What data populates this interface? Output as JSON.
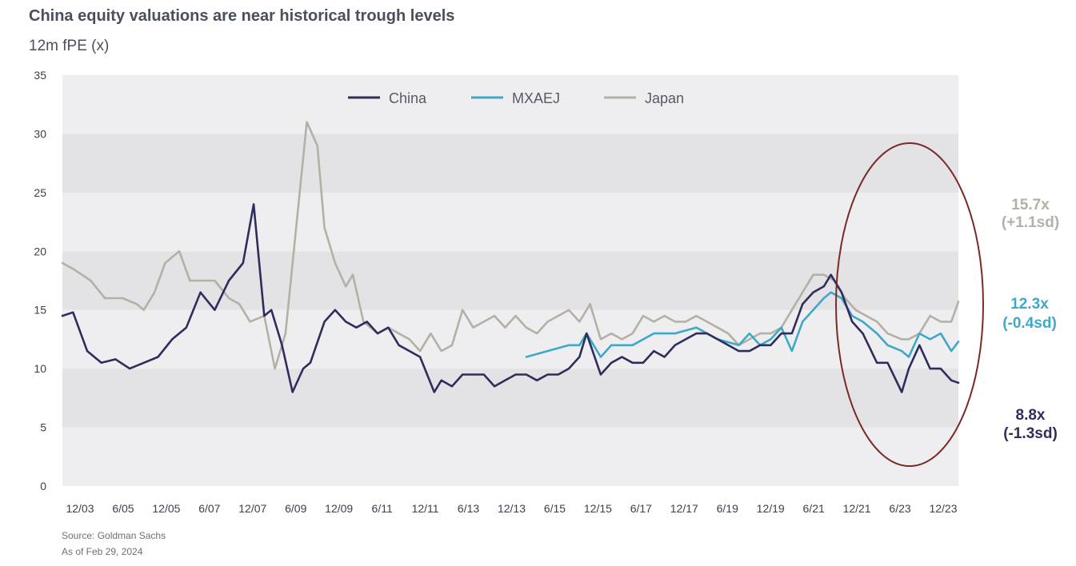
{
  "chart_data": {
    "type": "line",
    "title": "China equity valuations are near historical trough levels",
    "subtitle": "12m fPE (x)",
    "ylim": [
      0,
      35
    ],
    "y_ticks": [
      "0",
      "5",
      "10",
      "15",
      "20",
      "25",
      "30",
      "35"
    ],
    "x_tick_labels": [
      "12/03",
      "6/05",
      "12/05",
      "6/07",
      "12/07",
      "6/09",
      "12/09",
      "6/11",
      "12/11",
      "6/13",
      "12/13",
      "6/15",
      "12/15",
      "6/17",
      "12/17",
      "6/19",
      "12/19",
      "6/21",
      "12/21",
      "6/23",
      "12/23"
    ],
    "x_range": [
      "2003-01",
      "2024-02"
    ],
    "grid": "alternating horizontal bands",
    "legend": "top-center",
    "colors": {
      "China": "#2e2d5c",
      "MXAEJ": "#3ea8c8",
      "Japan": "#b5b0a6",
      "annotation": "#7a2a26"
    },
    "series": [
      {
        "name": "China",
        "x": [
          "2003-01",
          "2003-04",
          "2003-08",
          "2003-12",
          "2004-04",
          "2004-08",
          "2004-12",
          "2005-04",
          "2005-08",
          "2005-12",
          "2006-04",
          "2006-08",
          "2006-12",
          "2007-04",
          "2007-07",
          "2007-10",
          "2007-12",
          "2008-03",
          "2008-06",
          "2008-09",
          "2008-11",
          "2009-03",
          "2009-06",
          "2009-09",
          "2009-12",
          "2010-03",
          "2010-06",
          "2010-09",
          "2010-12",
          "2011-03",
          "2011-06",
          "2011-10",
          "2011-12",
          "2012-03",
          "2012-06",
          "2012-09",
          "2012-12",
          "2013-03",
          "2013-06",
          "2013-09",
          "2013-12",
          "2014-03",
          "2014-06",
          "2014-09",
          "2014-12",
          "2015-03",
          "2015-05",
          "2015-09",
          "2015-12",
          "2016-03",
          "2016-06",
          "2016-09",
          "2016-12",
          "2017-03",
          "2017-06",
          "2017-09",
          "2017-12",
          "2018-03",
          "2018-06",
          "2018-09",
          "2018-12",
          "2019-03",
          "2019-06",
          "2019-09",
          "2019-12",
          "2020-03",
          "2020-06",
          "2020-09",
          "2020-12",
          "2021-02",
          "2021-05",
          "2021-08",
          "2021-11",
          "2022-03",
          "2022-06",
          "2022-10",
          "2022-12",
          "2023-03",
          "2023-06",
          "2023-09",
          "2023-12",
          "2024-02"
        ],
        "values": [
          14.5,
          14.8,
          11.5,
          10.5,
          10.8,
          10.0,
          10.5,
          11.0,
          12.5,
          13.5,
          16.5,
          15.0,
          17.5,
          19.0,
          24.0,
          14.5,
          15.0,
          12.0,
          8.0,
          10.0,
          10.5,
          14.0,
          15.0,
          14.0,
          13.5,
          14.0,
          13.0,
          13.5,
          12.0,
          11.5,
          11.0,
          8.0,
          9.0,
          8.5,
          9.5,
          9.5,
          9.5,
          8.5,
          9.0,
          9.5,
          9.5,
          9.0,
          9.5,
          9.5,
          10.0,
          11.0,
          13.0,
          9.5,
          10.5,
          11.0,
          10.5,
          10.5,
          11.5,
          11.0,
          12.0,
          12.5,
          13.0,
          13.0,
          12.5,
          12.0,
          11.5,
          11.5,
          12.0,
          12.0,
          13.0,
          13.0,
          15.5,
          16.5,
          17.0,
          18.0,
          16.5,
          14.0,
          13.0,
          10.5,
          10.5,
          8.0,
          10.0,
          12.0,
          10.0,
          10.0,
          9.0,
          8.8
        ]
      },
      {
        "name": "MXAEJ",
        "x": [
          "2013-12",
          "2014-06",
          "2014-12",
          "2015-03",
          "2015-05",
          "2015-09",
          "2015-12",
          "2016-06",
          "2016-12",
          "2017-06",
          "2017-12",
          "2018-06",
          "2018-12",
          "2019-03",
          "2019-06",
          "2019-09",
          "2019-12",
          "2020-03",
          "2020-06",
          "2020-09",
          "2020-12",
          "2021-02",
          "2021-05",
          "2021-08",
          "2021-11",
          "2022-03",
          "2022-06",
          "2022-10",
          "2022-12",
          "2023-03",
          "2023-06",
          "2023-09",
          "2023-12",
          "2024-02"
        ],
        "values": [
          11.0,
          11.5,
          12.0,
          12.0,
          13.0,
          11.0,
          12.0,
          12.0,
          13.0,
          13.0,
          13.5,
          12.5,
          12.0,
          13.0,
          12.0,
          12.5,
          13.5,
          11.5,
          14.0,
          15.0,
          16.0,
          16.5,
          16.0,
          14.5,
          14.0,
          13.0,
          12.0,
          11.5,
          11.0,
          13.0,
          12.5,
          13.0,
          11.5,
          12.3
        ]
      },
      {
        "name": "Japan",
        "x": [
          "2003-01",
          "2003-04",
          "2003-09",
          "2004-01",
          "2004-06",
          "2004-10",
          "2004-12",
          "2005-03",
          "2005-06",
          "2005-10",
          "2006-01",
          "2006-04",
          "2006-08",
          "2006-12",
          "2007-03",
          "2007-06",
          "2007-10",
          "2008-01",
          "2008-04",
          "2008-08",
          "2008-10",
          "2009-01",
          "2009-03",
          "2009-06",
          "2009-09",
          "2009-11",
          "2010-02",
          "2010-06",
          "2010-09",
          "2010-12",
          "2011-03",
          "2011-06",
          "2011-09",
          "2011-12",
          "2012-03",
          "2012-06",
          "2012-09",
          "2012-12",
          "2013-03",
          "2013-06",
          "2013-09",
          "2013-12",
          "2014-03",
          "2014-06",
          "2014-09",
          "2014-12",
          "2015-03",
          "2015-06",
          "2015-09",
          "2015-12",
          "2016-03",
          "2016-06",
          "2016-09",
          "2016-12",
          "2017-03",
          "2017-06",
          "2017-09",
          "2017-12",
          "2018-03",
          "2018-06",
          "2018-09",
          "2018-12",
          "2019-03",
          "2019-06",
          "2019-09",
          "2019-12",
          "2020-03",
          "2020-06",
          "2020-09",
          "2020-12",
          "2021-03",
          "2021-06",
          "2021-09",
          "2021-12",
          "2022-03",
          "2022-06",
          "2022-10",
          "2022-12",
          "2023-03",
          "2023-06",
          "2023-09",
          "2023-12",
          "2024-02"
        ],
        "values": [
          19.0,
          18.5,
          17.5,
          16.0,
          16.0,
          15.5,
          15.0,
          16.5,
          19.0,
          20.0,
          17.5,
          17.5,
          17.5,
          16.0,
          15.5,
          14.0,
          14.5,
          10.0,
          13.0,
          25.0,
          31.0,
          29.0,
          22.0,
          19.0,
          17.0,
          18.0,
          14.0,
          13.0,
          13.5,
          13.0,
          12.5,
          11.5,
          13.0,
          11.5,
          12.0,
          15.0,
          13.5,
          14.0,
          14.5,
          13.5,
          14.5,
          13.5,
          13.0,
          14.0,
          14.5,
          15.0,
          14.0,
          15.5,
          12.5,
          13.0,
          12.5,
          13.0,
          14.5,
          14.0,
          14.5,
          14.0,
          14.0,
          14.5,
          14.0,
          13.5,
          13.0,
          12.0,
          12.5,
          13.0,
          13.0,
          13.5,
          15.0,
          16.5,
          18.0,
          18.0,
          17.5,
          16.0,
          15.0,
          14.5,
          14.0,
          13.0,
          12.5,
          12.5,
          13.0,
          14.5,
          14.0,
          14.0,
          15.7
        ]
      }
    ],
    "end_labels": [
      {
        "series": "Japan",
        "value": "15.7x",
        "sd": "(+1.1sd)"
      },
      {
        "series": "MXAEJ",
        "value": "12.3x",
        "sd": "(-0.4sd)"
      },
      {
        "series": "China",
        "value": "8.8x",
        "sd": "(-1.3sd)"
      }
    ]
  },
  "footer": {
    "source": "Source: Goldman Sachs",
    "as_of": "As of Feb 29, 2024"
  }
}
